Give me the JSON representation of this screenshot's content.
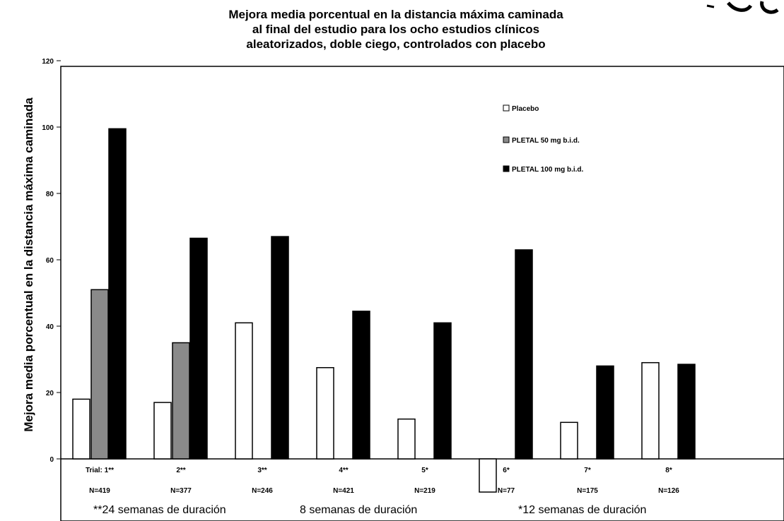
{
  "chart_data": {
    "type": "bar",
    "title_lines": [
      "Mejora media porcentual en la distancia máxima caminada",
      "al final del estudio para los ocho estudios clínicos",
      "aleatorizados, doble ciego, controlados con placebo"
    ],
    "ylabel": "Mejora media porcentual en la distancia máxima caminada",
    "xlabel": "",
    "ylim": [
      -20,
      120
    ],
    "yticks": [
      "-20",
      "0",
      "20",
      "40",
      "60",
      "80",
      "100",
      "120"
    ],
    "categories": [
      "Trial: 1**",
      "2**",
      "3**",
      "4**",
      "5*",
      "6*",
      "7*",
      "8*"
    ],
    "n_labels": [
      "N=419",
      "N=377",
      "N=246",
      "N=421",
      "N=219",
      "N=77",
      "N=175",
      "N=126"
    ],
    "series": [
      {
        "name": "Placebo",
        "color": "#ffffff",
        "values": [
          18,
          17,
          41,
          27.5,
          12,
          -10,
          11,
          29
        ]
      },
      {
        "name": "PLETAL 50 mg b.i.d.",
        "color": "#8a8a8a",
        "values": [
          51,
          35,
          null,
          null,
          null,
          null,
          null,
          null
        ]
      },
      {
        "name": "PLETAL 100 mg b.i.d.",
        "color": "#000000",
        "values": [
          99.5,
          66.5,
          67,
          44.5,
          41,
          63,
          28,
          28.5
        ]
      }
    ],
    "duration_labels": [
      "**24 semanas de duración",
      "8 semanas de duración",
      "*12 semanas de duración"
    ],
    "legend_position": "top-right",
    "grid": false
  }
}
